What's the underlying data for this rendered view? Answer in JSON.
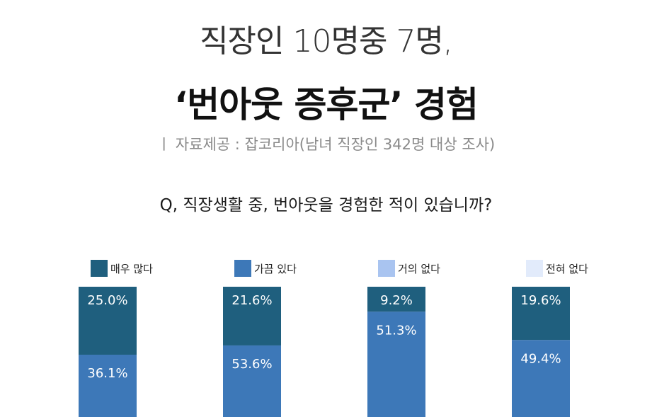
{
  "header": {
    "title_line1": "직장인 10명중 7명,",
    "title_line2": "‘번아웃 증후군’ 경험",
    "source": "ㅣ 자료제공 : 잡코리아(남녀 직장인 342명 대상 조사)",
    "question": "Q, 직장생활 중, 번아웃을 경험한 적이 있습니까?"
  },
  "legend": [
    {
      "label": "매우 많다",
      "color": "#1f5f7e"
    },
    {
      "label": "가끔 있다",
      "color": "#3d78b8"
    },
    {
      "label": "거의 없다",
      "color": "#a9c4f0"
    },
    {
      "label": "전혀 없다",
      "color": "#e2ebfb"
    }
  ],
  "chart_data": {
    "type": "bar",
    "stacked": true,
    "categories": [
      "",
      "",
      "",
      ""
    ],
    "series": [
      {
        "name": "매우 많다",
        "color": "#1f5f7e",
        "values": [
          25.0,
          21.6,
          9.2,
          19.6
        ],
        "labels": [
          "25.0%",
          "21.6%",
          "9.2%",
          "19.6%"
        ]
      },
      {
        "name": "가끔 있다",
        "color": "#3d78b8",
        "values": [
          36.1,
          53.6,
          51.3,
          49.4
        ],
        "labels": [
          "36.1%",
          "53.6%",
          "51.3%",
          "49.4%"
        ]
      }
    ],
    "title": "",
    "xlabel": "",
    "ylabel": "",
    "grid": false,
    "legend_position": "top"
  }
}
